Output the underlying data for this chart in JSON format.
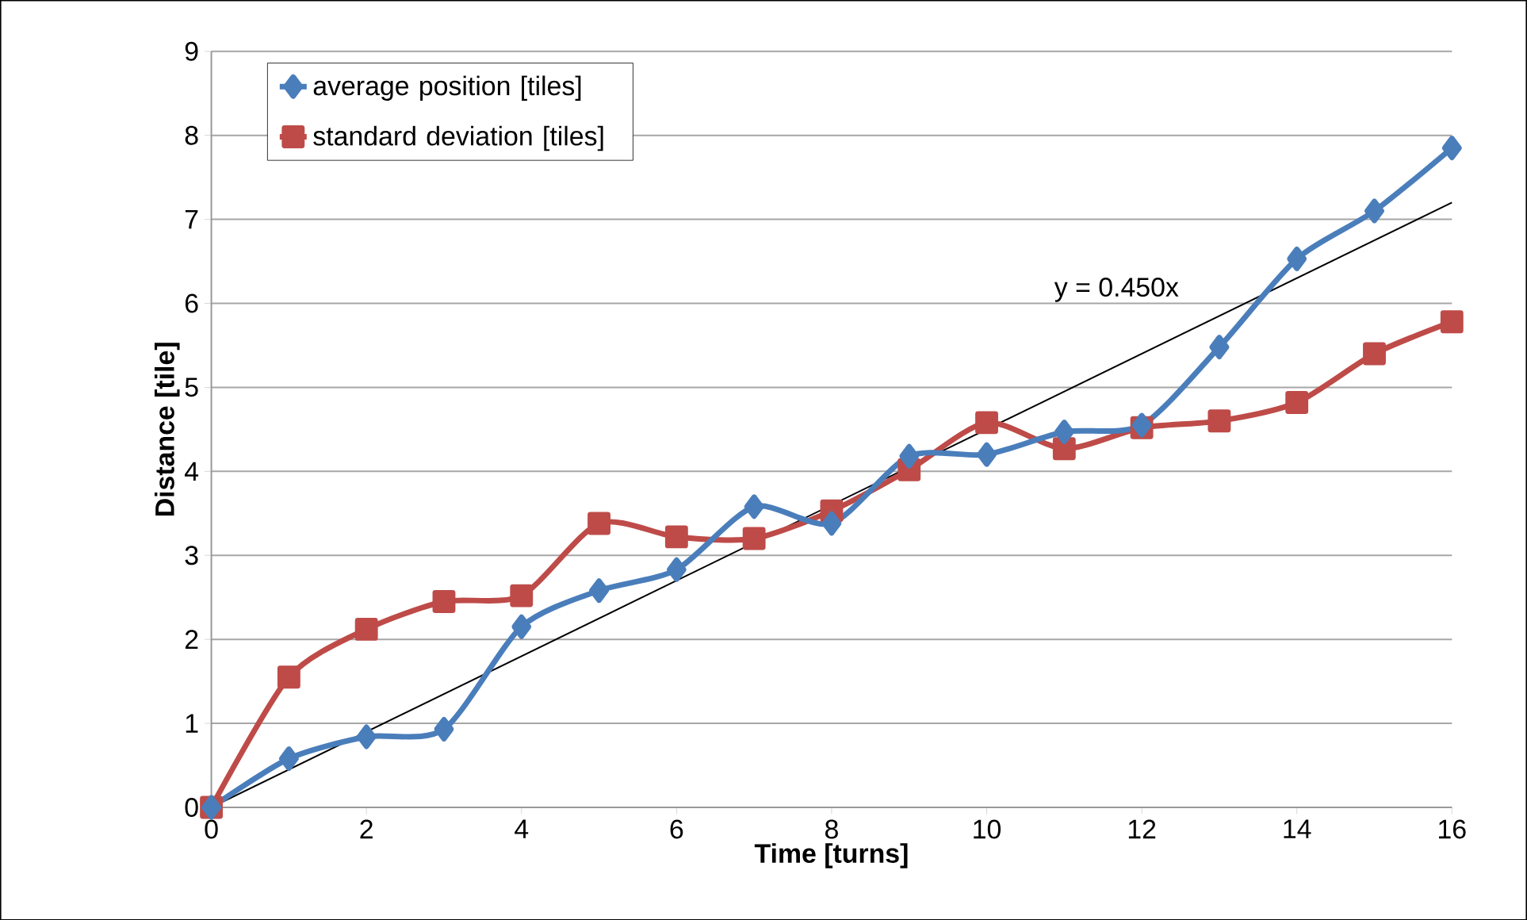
{
  "chart_data": {
    "type": "line",
    "xlabel": "Time [turns]",
    "ylabel": "Distance  [tile]",
    "x": [
      0,
      1,
      2,
      3,
      4,
      5,
      6,
      7,
      8,
      9,
      10,
      11,
      12,
      13,
      14,
      15,
      16
    ],
    "series": [
      {
        "name": "average position [tiles]",
        "color": "#4a7ebb",
        "marker": "diamond",
        "values": [
          0,
          0.58,
          0.84,
          0.93,
          2.15,
          2.58,
          2.83,
          3.58,
          3.38,
          4.18,
          4.2,
          4.47,
          4.55,
          5.48,
          6.53,
          7.1,
          7.85
        ]
      },
      {
        "name": "standard deviation [tiles]",
        "color": "#be4b48",
        "marker": "square",
        "values": [
          0,
          1.55,
          2.12,
          2.45,
          2.52,
          3.38,
          3.22,
          3.2,
          3.53,
          4.02,
          4.58,
          4.27,
          4.52,
          4.6,
          4.82,
          5.4,
          5.78
        ]
      },
      {
        "type": "line",
        "color": "#000000",
        "marker": "none",
        "x": [
          0,
          16
        ],
        "values": [
          0,
          7.2
        ]
      }
    ],
    "annotations": [
      "y = 0.450x"
    ],
    "xlim": [
      0,
      16
    ],
    "ylim": [
      0,
      9
    ],
    "xticks": [
      0,
      2,
      4,
      6,
      8,
      10,
      12,
      14,
      16
    ],
    "yticks": [
      0,
      1,
      2,
      3,
      4,
      5,
      6,
      7,
      8,
      9
    ],
    "grid": "y",
    "legend": "top left"
  }
}
